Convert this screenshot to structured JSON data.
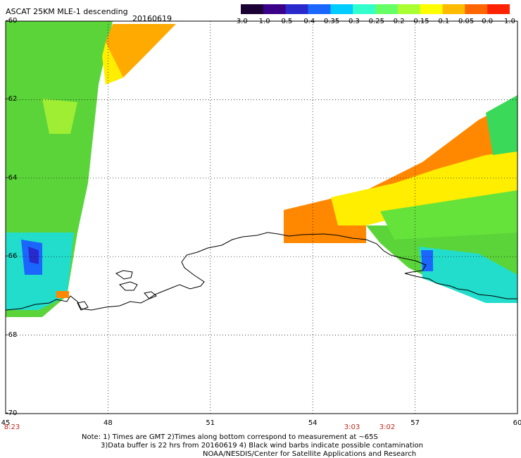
{
  "header": {
    "title": "ASCAT 25KM MLE-1 descending",
    "date": "20160619"
  },
  "colorbar": {
    "colors": [
      "#1a0033",
      "#3a0088",
      "#2a2acc",
      "#1a66ff",
      "#00ccff",
      "#33ffcc",
      "#66ff66",
      "#aaff33",
      "#ffff00",
      "#ffbb00",
      "#ff6600",
      "#ff2200"
    ],
    "labels": [
      "-3.0",
      "-1.0",
      "-0.5",
      "-0.4",
      "-0.35",
      "-0.3",
      "-0.25",
      "-0.2",
      "-0.15",
      "-0.1",
      "-0.05",
      "0.0",
      "1.0"
    ]
  },
  "axes": {
    "lon_labels": [
      "45",
      "48",
      "51",
      "54",
      "57",
      "60"
    ],
    "lat_labels": [
      "-60",
      "-62",
      "-64",
      "-66",
      "-68",
      "-70"
    ]
  },
  "times": [
    "8:23",
    "3:03",
    "3:02"
  ],
  "notes": {
    "line1": "Note: 1) Times are GMT 2)Times along bottom correspond to measurement at ~65S",
    "line2": "3)Data buffer is 22 hrs from 20160619 4) Black wind barbs indicate possible contamination",
    "line3": "NOAA/NESDIS/Center for Satellite Applications and Research"
  },
  "map_data": {
    "lon_range": [
      45,
      60
    ],
    "lat_range": [
      -70,
      -60
    ]
  }
}
